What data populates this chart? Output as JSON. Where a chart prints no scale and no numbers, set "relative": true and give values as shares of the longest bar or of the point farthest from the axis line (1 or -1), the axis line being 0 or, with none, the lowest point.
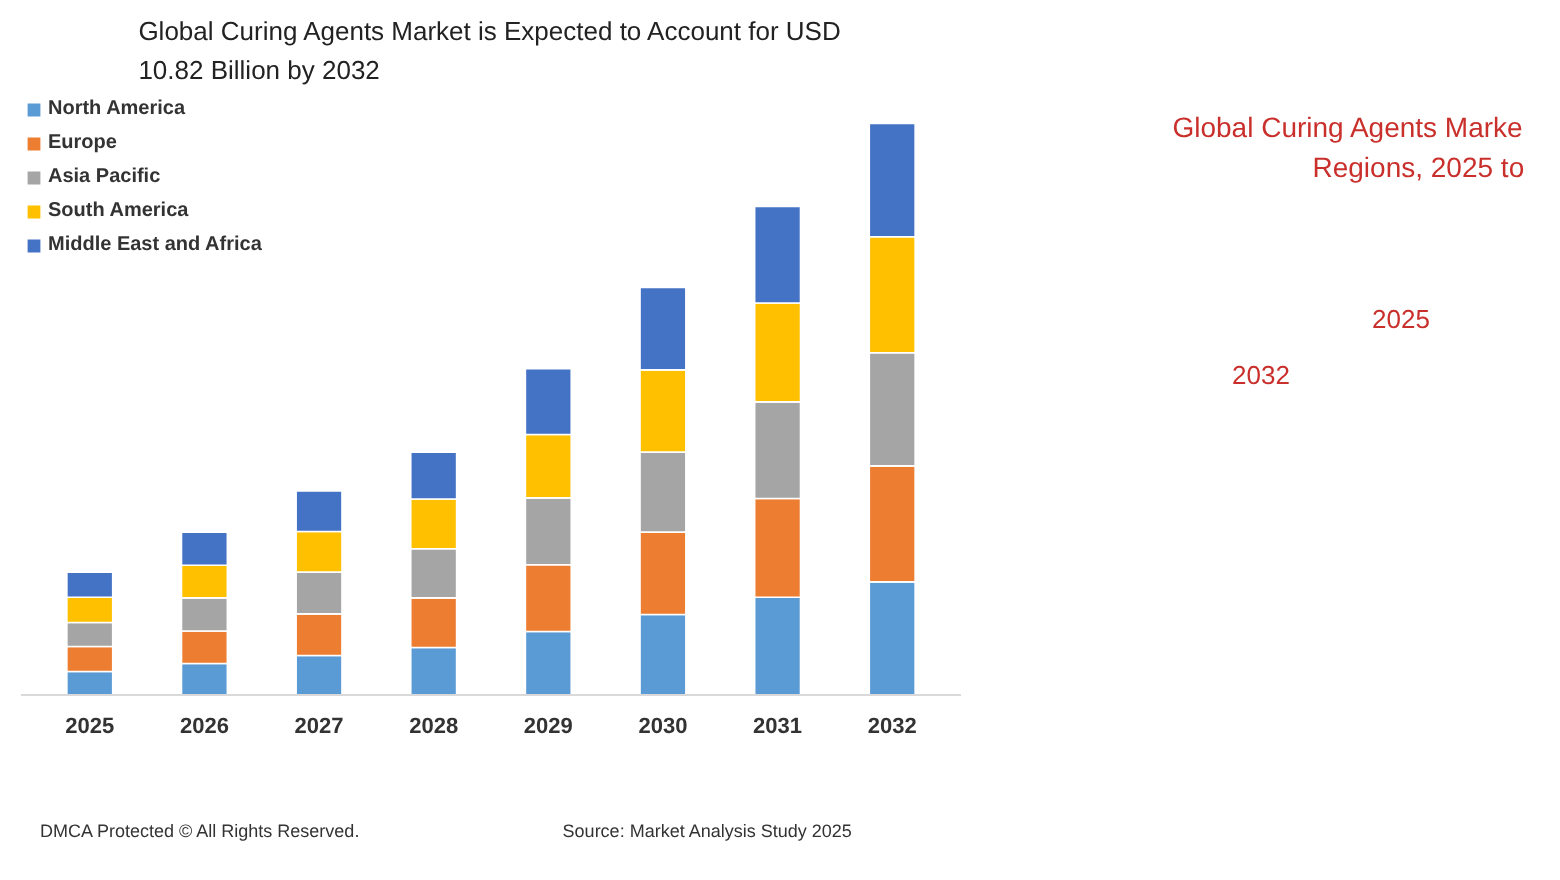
{
  "chart_data": {
    "type": "bar",
    "stacked": true,
    "relative": true,
    "title": "Global Curing Agents Market is Expected to Account for USD 10.82 Billion by 2032",
    "categories": [
      "2025",
      "2026",
      "2027",
      "2028",
      "2029",
      "2030",
      "2031",
      "2032"
    ],
    "series": [
      {
        "name": "North America",
        "color": "#5b9bd5",
        "values": [
          0.041,
          0.055,
          0.069,
          0.083,
          0.111,
          0.141,
          0.171,
          0.198
        ]
      },
      {
        "name": "Europe",
        "color": "#ed7d31",
        "values": [
          0.044,
          0.057,
          0.073,
          0.087,
          0.117,
          0.144,
          0.173,
          0.203
        ]
      },
      {
        "name": "Asia Pacific",
        "color": "#a5a5a5",
        "values": [
          0.042,
          0.058,
          0.073,
          0.086,
          0.117,
          0.14,
          0.169,
          0.198
        ]
      },
      {
        "name": "South America",
        "color": "#ffc000",
        "values": [
          0.044,
          0.057,
          0.071,
          0.087,
          0.111,
          0.144,
          0.173,
          0.203
        ]
      },
      {
        "name": "Middle East and Africa",
        "color": "#4472c4",
        "values": [
          0.044,
          0.058,
          0.071,
          0.082,
          0.115,
          0.144,
          0.169,
          0.198
        ]
      }
    ],
    "legend": "top left",
    "grid": false,
    "annotations": [
      "Global Curing Agents Marke",
      "Regions, 2025 to",
      "2025",
      "2032",
      "DMCA Protected © All Rights Reserved.",
      "Source: Market Analysis Study 2025"
    ]
  }
}
